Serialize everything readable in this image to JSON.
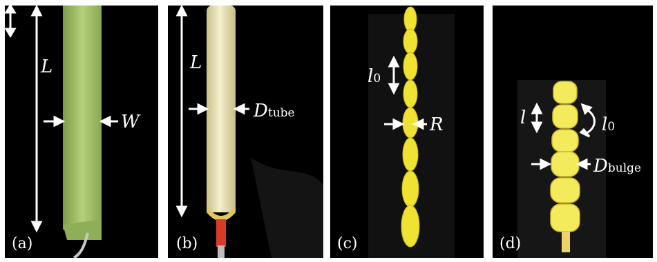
{
  "colors": {
    "background": "#000000",
    "frame": "#ffffff",
    "film_green": "#a9c66a",
    "tube_yellow": "#e6e67a",
    "bulge_yellow": "#f0e233",
    "annotation": "#ffffff",
    "connector_red": "#d83a2a"
  },
  "panels": [
    {
      "tag": "(a)",
      "labels": {
        "length": "L",
        "width": "W"
      }
    },
    {
      "tag": "(b)",
      "labels": {
        "length": "L",
        "diameter_symbol": "D",
        "diameter_sub": "tube"
      }
    },
    {
      "tag": "(c)",
      "labels": {
        "segment_symbol": "l",
        "segment_sub": "0",
        "radius": "R"
      }
    },
    {
      "tag": "(d)",
      "labels": {
        "segment": "l",
        "rest_symbol": "l",
        "rest_sub": "0",
        "diameter_symbol": "D",
        "diameter_sub": "bulge"
      }
    }
  ]
}
